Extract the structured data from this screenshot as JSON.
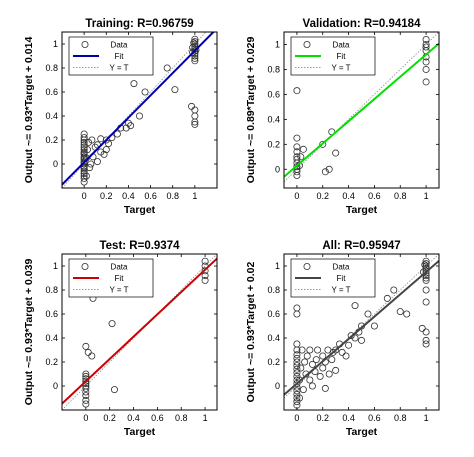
{
  "chart_data": [
    {
      "type": "scatter",
      "title": "Training: R=0.96759",
      "xlabel": "Target",
      "ylabel": "Output ~= 0.93*Target + 0.014",
      "xlim": [
        -0.2,
        1.2
      ],
      "ylim": [
        -0.2,
        1.1
      ],
      "xticks": [
        "0",
        "0.2",
        "0.4",
        "0.6",
        "0.8",
        "1"
      ],
      "yticks": [
        "0",
        "0.2",
        "0.4",
        "0.6",
        "0.8",
        "1"
      ],
      "grid": false,
      "legend_position": "top-left",
      "fit": {
        "slope": 0.93,
        "intercept": 0.014,
        "color": "#0000aa"
      },
      "series": [
        {
          "name": "Data",
          "points": [
            [
              0,
              -0.15
            ],
            [
              0,
              -0.12
            ],
            [
              0,
              -0.1
            ],
            [
              0,
              -0.08
            ],
            [
              0,
              -0.06
            ],
            [
              0,
              -0.04
            ],
            [
              0,
              -0.02
            ],
            [
              0,
              0
            ],
            [
              0,
              0.02
            ],
            [
              0,
              0.04
            ],
            [
              0,
              0.06
            ],
            [
              0,
              0.08
            ],
            [
              0,
              0.1
            ],
            [
              0,
              0.12
            ],
            [
              0,
              0.14
            ],
            [
              0,
              0.16
            ],
            [
              0,
              0.18
            ],
            [
              0,
              0.2
            ],
            [
              0,
              0.22
            ],
            [
              0,
              0.25
            ],
            [
              0,
              -0.03
            ],
            [
              0,
              0.01
            ],
            [
              0,
              0.05
            ],
            [
              0,
              0.09
            ],
            [
              0.02,
              -0.1
            ],
            [
              0.02,
              0.05
            ],
            [
              0.03,
              0.12
            ],
            [
              0.04,
              0.18
            ],
            [
              0.05,
              -0.03
            ],
            [
              0.06,
              0.0
            ],
            [
              0.07,
              0.2
            ],
            [
              0.08,
              0.06
            ],
            [
              0.1,
              0.14
            ],
            [
              0.12,
              0.16
            ],
            [
              0.12,
              0.02
            ],
            [
              0.15,
              0.21
            ],
            [
              0.15,
              0.1
            ],
            [
              0.18,
              0.08
            ],
            [
              0.2,
              0.12
            ],
            [
              0.2,
              0.2
            ],
            [
              0.22,
              0.17
            ],
            [
              0.25,
              0.22
            ],
            [
              0.3,
              0.25
            ],
            [
              0.33,
              0.3
            ],
            [
              0.38,
              0.3
            ],
            [
              0.4,
              0.34
            ],
            [
              0.42,
              0.32
            ],
            [
              0.45,
              0.67
            ],
            [
              0.5,
              0.4
            ],
            [
              0.55,
              0.6
            ],
            [
              0.75,
              0.8
            ],
            [
              0.82,
              0.62
            ],
            [
              1,
              0.9
            ],
            [
              1,
              0.92
            ],
            [
              1,
              0.94
            ],
            [
              1,
              0.96
            ],
            [
              1,
              0.98
            ],
            [
              1,
              1.0
            ],
            [
              1,
              1.02
            ],
            [
              1,
              1.04
            ],
            [
              1,
              0.88
            ],
            [
              1,
              0.86
            ],
            [
              0.99,
              1.01
            ],
            [
              0.98,
              0.97
            ],
            [
              0.98,
              0.93
            ],
            [
              1.01,
              0.95
            ],
            [
              1,
              0.45
            ],
            [
              1,
              0.4
            ],
            [
              1,
              0.35
            ],
            [
              0.97,
              0.48
            ],
            [
              1,
              0.33
            ]
          ]
        },
        {
          "name": "Fit"
        },
        {
          "name": "Y = T"
        }
      ]
    },
    {
      "type": "scatter",
      "title": "Validation: R=0.94184",
      "xlabel": "Target",
      "ylabel": "Output ~= 0.89*Target + 0.029",
      "xlim": [
        -0.1,
        1.1
      ],
      "ylim": [
        -0.15,
        1.1
      ],
      "xticks": [
        "0",
        "0.2",
        "0.4",
        "0.6",
        "0.8",
        "1"
      ],
      "yticks": [
        "0",
        "0.2",
        "0.4",
        "0.6",
        "0.8",
        "1"
      ],
      "grid": false,
      "legend_position": "top-left",
      "fit": {
        "slope": 0.89,
        "intercept": 0.029,
        "color": "#00e000"
      },
      "series": [
        {
          "name": "Data",
          "points": [
            [
              0,
              -0.05
            ],
            [
              0,
              -0.02
            ],
            [
              0,
              0.0
            ],
            [
              0,
              0.02
            ],
            [
              0,
              0.05
            ],
            [
              0,
              0.08
            ],
            [
              0,
              0.1
            ],
            [
              0,
              0.14
            ],
            [
              0,
              0.18
            ],
            [
              0,
              0.25
            ],
            [
              0,
              0.63
            ],
            [
              0.02,
              0.03
            ],
            [
              0.03,
              0.1
            ],
            [
              0.05,
              0.16
            ],
            [
              0.2,
              0.2
            ],
            [
              0.22,
              -0.02
            ],
            [
              0.25,
              0.0
            ],
            [
              0.27,
              0.3
            ],
            [
              0.3,
              0.13
            ],
            [
              1,
              0.7
            ],
            [
              1,
              0.8
            ],
            [
              1,
              0.86
            ],
            [
              1,
              0.9
            ],
            [
              1,
              0.95
            ],
            [
              1,
              0.98
            ],
            [
              1,
              1.0
            ],
            [
              1,
              1.04
            ]
          ]
        },
        {
          "name": "Fit"
        },
        {
          "name": "Y = T"
        }
      ]
    },
    {
      "type": "scatter",
      "title": "Test: R=0.9374",
      "xlabel": "Target",
      "ylabel": "Output ~= 0.93*Target + 0.039",
      "xlim": [
        -0.2,
        1.1
      ],
      "ylim": [
        -0.2,
        1.1
      ],
      "xticks": [
        "0",
        "0.2",
        "0.4",
        "0.6",
        "0.8",
        "1"
      ],
      "yticks": [
        "0",
        "0.2",
        "0.4",
        "0.6",
        "0.8",
        "1"
      ],
      "grid": false,
      "legend_position": "top-left",
      "fit": {
        "slope": 0.93,
        "intercept": 0.039,
        "color": "#cc0000"
      },
      "series": [
        {
          "name": "Data",
          "points": [
            [
              0,
              -0.15
            ],
            [
              0,
              -0.12
            ],
            [
              0,
              -0.08
            ],
            [
              0,
              -0.05
            ],
            [
              0,
              -0.02
            ],
            [
              0,
              0.0
            ],
            [
              0,
              0.02
            ],
            [
              0,
              0.04
            ],
            [
              0,
              0.06
            ],
            [
              0,
              0.08
            ],
            [
              0,
              0.1
            ],
            [
              0,
              0.33
            ],
            [
              0.02,
              0.28
            ],
            [
              0.05,
              0.25
            ],
            [
              0.06,
              0.73
            ],
            [
              0.22,
              0.52
            ],
            [
              0.24,
              -0.03
            ],
            [
              1,
              0.88
            ],
            [
              1,
              0.92
            ],
            [
              1,
              0.96
            ],
            [
              1,
              1.0
            ],
            [
              1,
              1.04
            ]
          ]
        },
        {
          "name": "Fit"
        },
        {
          "name": "Y = T"
        }
      ]
    },
    {
      "type": "scatter",
      "title": "All: R=0.95947",
      "xlabel": "Target",
      "ylabel": "Output ~= 0.93*Target + 0.02",
      "xlim": [
        -0.1,
        1.1
      ],
      "ylim": [
        -0.2,
        1.1
      ],
      "xticks": [
        "0",
        "0.2",
        "0.4",
        "0.6",
        "0.8",
        "1"
      ],
      "yticks": [
        "0",
        "0.2",
        "0.4",
        "0.6",
        "0.8",
        "1"
      ],
      "grid": false,
      "legend_position": "top-left",
      "fit": {
        "slope": 0.93,
        "intercept": 0.02,
        "color": "#444444"
      },
      "series": [
        {
          "name": "Data",
          "points": [
            [
              0,
              -0.16
            ],
            [
              0,
              -0.13
            ],
            [
              0,
              -0.1
            ],
            [
              0,
              -0.07
            ],
            [
              0,
              -0.04
            ],
            [
              0,
              -0.01
            ],
            [
              0,
              0.02
            ],
            [
              0,
              0.05
            ],
            [
              0,
              0.08
            ],
            [
              0,
              0.11
            ],
            [
              0,
              0.14
            ],
            [
              0,
              0.17
            ],
            [
              0,
              0.2
            ],
            [
              0,
              0.23
            ],
            [
              0,
              0.26
            ],
            [
              0,
              0.3
            ],
            [
              0,
              0.35
            ],
            [
              0,
              0.6
            ],
            [
              0,
              0.65
            ],
            [
              0.02,
              -0.1
            ],
            [
              0.02,
              0.05
            ],
            [
              0.03,
              0.15
            ],
            [
              0.04,
              0.3
            ],
            [
              0.05,
              -0.03
            ],
            [
              0.06,
              0.2
            ],
            [
              0.07,
              0.1
            ],
            [
              0.08,
              0.25
            ],
            [
              0.1,
              0.05
            ],
            [
              0.1,
              0.3
            ],
            [
              0.12,
              0.18
            ],
            [
              0.12,
              0.0
            ],
            [
              0.14,
              0.12
            ],
            [
              0.15,
              0.22
            ],
            [
              0.16,
              0.3
            ],
            [
              0.18,
              0.08
            ],
            [
              0.2,
              0.15
            ],
            [
              0.2,
              0.25
            ],
            [
              0.22,
              -0.02
            ],
            [
              0.22,
              0.2
            ],
            [
              0.24,
              0.3
            ],
            [
              0.25,
              0.1
            ],
            [
              0.27,
              0.22
            ],
            [
              0.28,
              0.28
            ],
            [
              0.3,
              0.13
            ],
            [
              0.3,
              0.3
            ],
            [
              0.33,
              0.35
            ],
            [
              0.35,
              0.28
            ],
            [
              0.38,
              0.25
            ],
            [
              0.4,
              0.34
            ],
            [
              0.42,
              0.42
            ],
            [
              0.45,
              0.4
            ],
            [
              0.45,
              0.67
            ],
            [
              0.48,
              0.45
            ],
            [
              0.5,
              0.38
            ],
            [
              0.5,
              0.5
            ],
            [
              0.55,
              0.6
            ],
            [
              0.6,
              0.5
            ],
            [
              0.7,
              0.73
            ],
            [
              0.75,
              0.8
            ],
            [
              0.8,
              0.62
            ],
            [
              0.85,
              0.6
            ],
            [
              1,
              0.88
            ],
            [
              1,
              0.9
            ],
            [
              1,
              0.92
            ],
            [
              1,
              0.94
            ],
            [
              1,
              0.96
            ],
            [
              1,
              0.98
            ],
            [
              1,
              1.0
            ],
            [
              1,
              1.02
            ],
            [
              1,
              1.04
            ],
            [
              0.98,
              0.95
            ],
            [
              0.99,
              1.01
            ],
            [
              1,
              0.45
            ],
            [
              1,
              0.38
            ],
            [
              1,
              0.35
            ],
            [
              0.97,
              0.48
            ],
            [
              1,
              0.7
            ],
            [
              1,
              0.8
            ]
          ]
        },
        {
          "name": "Fit"
        },
        {
          "name": "Y = T"
        }
      ]
    }
  ]
}
